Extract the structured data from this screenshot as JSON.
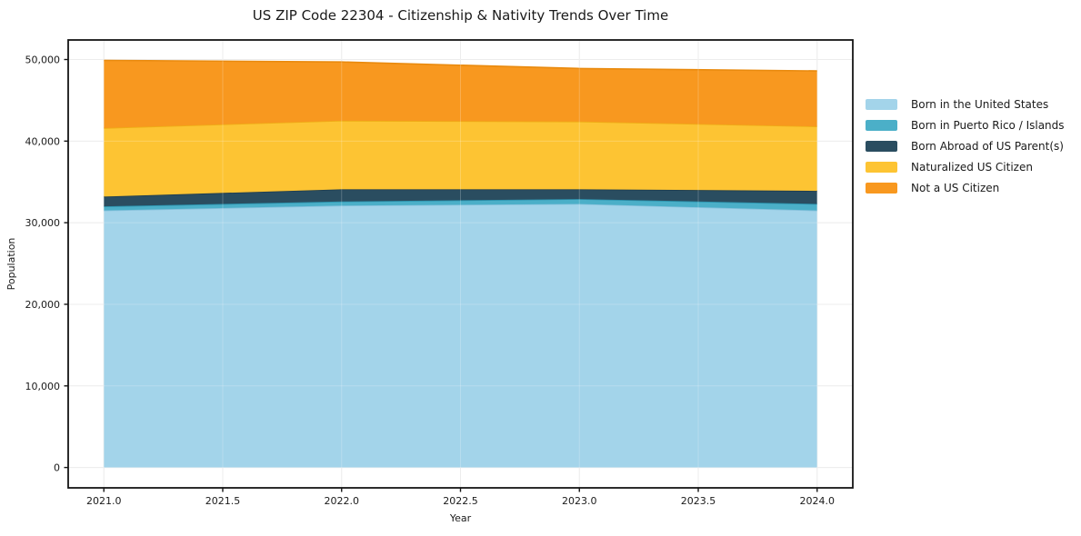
{
  "title": "US ZIP Code 22304 - Citizenship & Nativity Trends Over Time",
  "chart_data": {
    "type": "area",
    "stacked": true,
    "title": "US ZIP Code 22304 - Citizenship & Nativity Trends Over Time",
    "xlabel": "Year",
    "ylabel": "Population",
    "x": [
      2021,
      2022,
      2023,
      2024
    ],
    "series": [
      {
        "name": "Born in the United States",
        "values": [
          31500,
          32100,
          32300,
          31500
        ],
        "color": "#a3d4ea",
        "edge_color": "#86c1dc"
      },
      {
        "name": "Born in Puerto Rico / Islands",
        "values": [
          500,
          500,
          600,
          800
        ],
        "color": "#4bafc8",
        "edge_color": "#2b93ae"
      },
      {
        "name": "Born Abroad of US Parent(s)",
        "values": [
          1200,
          1500,
          1200,
          1600
        ],
        "color": "#2a4d60",
        "edge_color": "#1e3c4d"
      },
      {
        "name": "Naturalized US Citizen",
        "values": [
          8400,
          8400,
          8300,
          7900
        ],
        "color": "#fdc433",
        "edge_color": "#eead15"
      },
      {
        "name": "Not a US Citizen",
        "values": [
          8300,
          7200,
          6500,
          6800
        ],
        "color": "#f8981f",
        "edge_color": "#e98a0e"
      }
    ],
    "stack_totals": [
      49900,
      49700,
      48900,
      48600
    ],
    "xlim": [
      2020.85,
      2024.15
    ],
    "ylim": [
      -2495,
      52395
    ],
    "xticks": [
      2021.0,
      2021.5,
      2022.0,
      2022.5,
      2023.0,
      2023.5,
      2024.0
    ],
    "xtick_labels": [
      "2021.0",
      "2021.5",
      "2022.0",
      "2022.5",
      "2023.0",
      "2023.5",
      "2024.0"
    ],
    "yticks": [
      0,
      10000,
      20000,
      30000,
      40000,
      50000
    ],
    "ytick_labels": [
      "0",
      "10,000",
      "20,000",
      "30,000",
      "40,000",
      "50,000"
    ],
    "grid": true,
    "gridline_color": "#e7e7e7",
    "spine_color": "#141414",
    "legend_position": "right-outside"
  }
}
